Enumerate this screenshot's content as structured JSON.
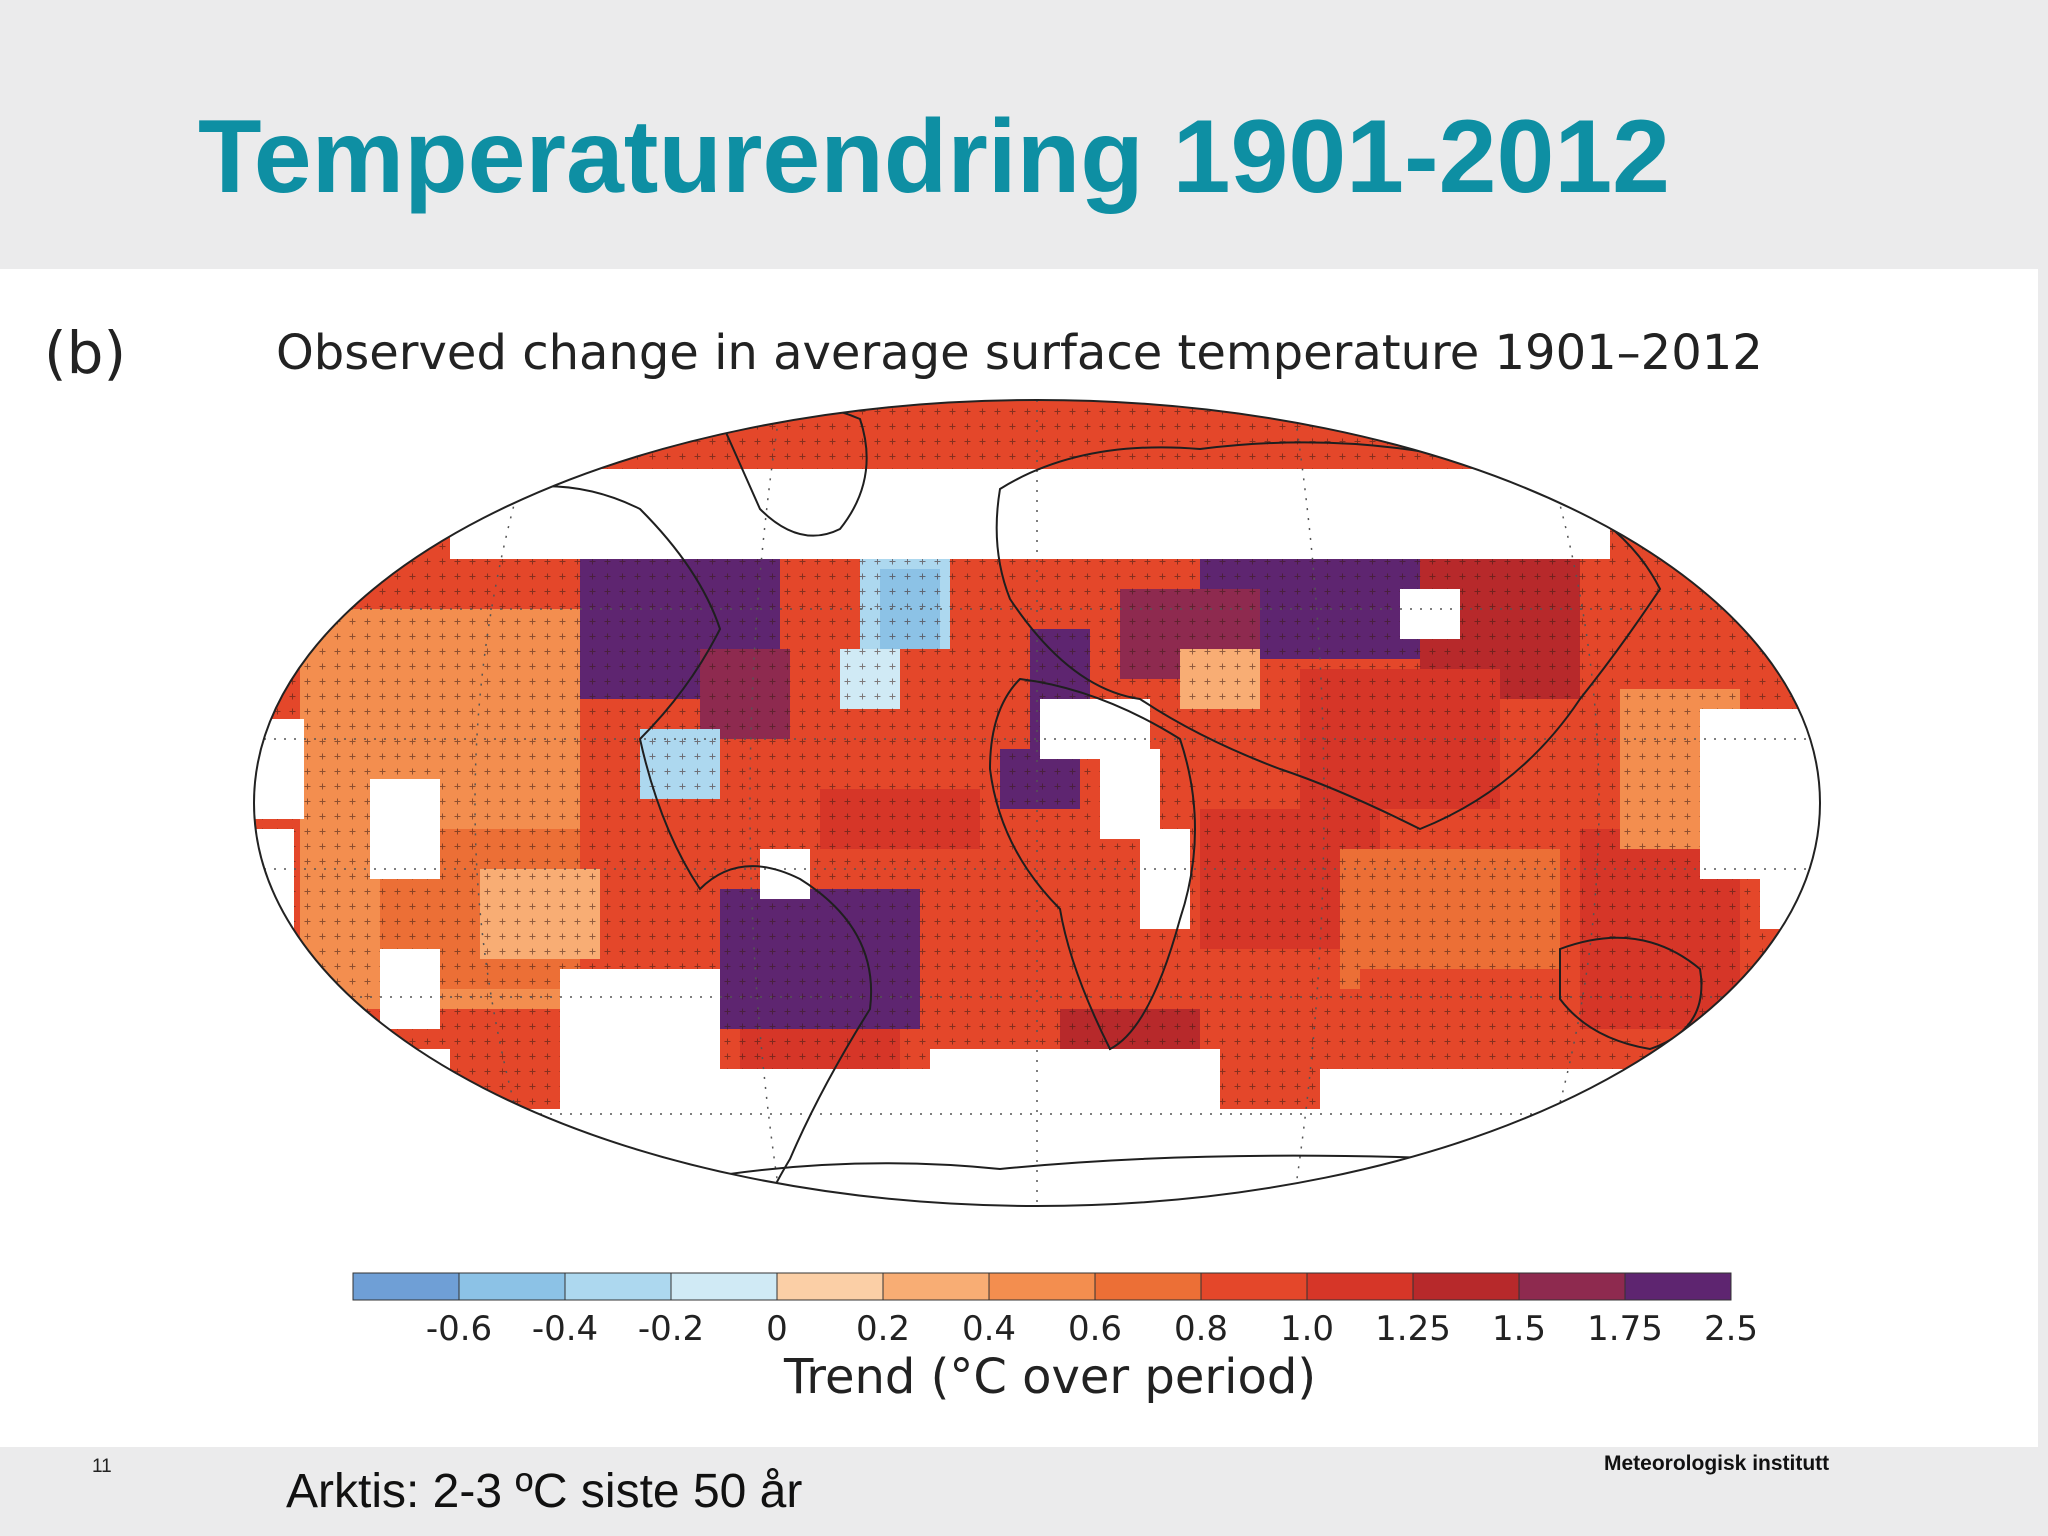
{
  "slide": {
    "title": "Temperaturendring 1901-2012",
    "number": "11",
    "note": "Arktis: 2-3 ºC siste 50 år",
    "institute": "Meteorologisk institutt"
  },
  "figure": {
    "panel_label": "(b)",
    "title": "Observed change in average surface temperature 1901–2012"
  },
  "legend": {
    "title": "Trend (°C over period)",
    "ticks": [
      "-0.6",
      "-0.4",
      "-0.2",
      "0",
      "0.2",
      "0.4",
      "0.6",
      "0.8",
      "1.0",
      "1.25",
      "1.5",
      "1.75",
      "2.5"
    ],
    "colors": [
      "#6f9fd6",
      "#8cc2e6",
      "#add8ef",
      "#d0eaf5",
      "#fbcfa6",
      "#f8ad74",
      "#f38e4f",
      "#ec6f36",
      "#e4472a",
      "#d63628",
      "#b7292b",
      "#8e2a4f",
      "#5e2570"
    ]
  },
  "map": {
    "background_color": "#e4472a",
    "no_data_color": "#ffffff"
  }
}
